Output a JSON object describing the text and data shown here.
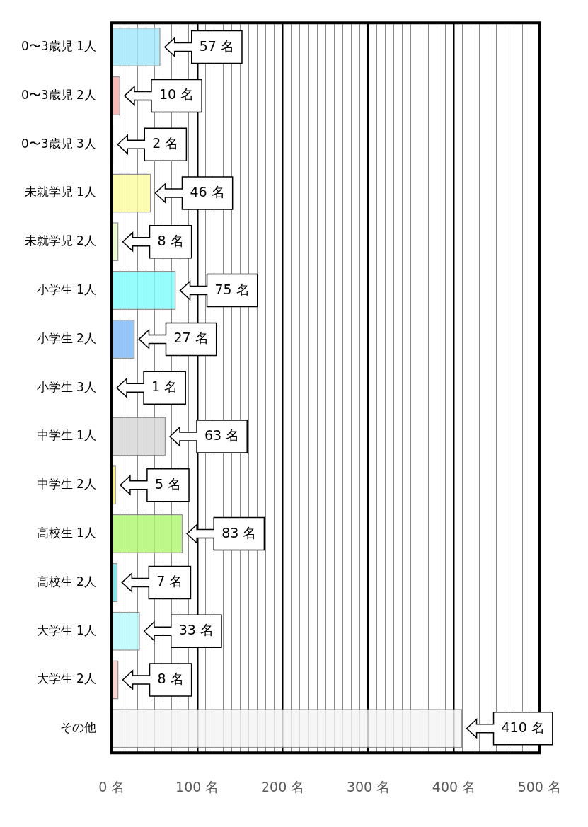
{
  "chart_data": {
    "type": "bar",
    "orientation": "horizontal",
    "categories": [
      "0〜3歳児 1人",
      "0〜3歳児 2人",
      "0〜3歳児 3人",
      "未就学児 1人",
      "未就学児 2人",
      "小学生 1人",
      "小学生 2人",
      "小学生 3人",
      "中学生 1人",
      "中学生 2人",
      "高校生 1人",
      "高校生 2人",
      "大学生 1人",
      "大学生 2人",
      "その他"
    ],
    "values": [
      57,
      10,
      2,
      46,
      8,
      75,
      27,
      1,
      63,
      5,
      83,
      7,
      33,
      8,
      410
    ],
    "colors": [
      "#9ee6fb",
      "#f9a8a8",
      "#c8c8c8",
      "#fdfc9e",
      "#eafbc9",
      "#7dfdfb",
      "#7ab6f7",
      "#d0d0d0",
      "#d5d5d5",
      "#f7f266",
      "#aef56d",
      "#66e0e5",
      "#b8fafd",
      "#fbc8c8",
      "#f4f4f4"
    ],
    "value_labels": [
      "57 名",
      "10 名",
      "2 名",
      "46 名",
      "8 名",
      "75 名",
      "27 名",
      "1 名",
      "63 名",
      "5 名",
      "83 名",
      "7 名",
      "33 名",
      "8 名",
      "410 名"
    ],
    "xlim": [
      0,
      500
    ],
    "xticks": [
      {
        "value": 0,
        "label": "0 名"
      },
      {
        "value": 10,
        "label": null
      },
      {
        "value": 20,
        "label": null
      },
      {
        "value": 30,
        "label": null
      },
      {
        "value": 40,
        "label": null
      },
      {
        "value": 50,
        "label": null
      },
      {
        "value": 60,
        "label": null
      },
      {
        "value": 70,
        "label": null
      },
      {
        "value": 80,
        "label": null
      },
      {
        "value": 90,
        "label": null
      },
      {
        "value": 100,
        "label": "100 名"
      },
      {
        "value": 110,
        "label": null
      },
      {
        "value": 120,
        "label": null
      },
      {
        "value": 130,
        "label": null
      },
      {
        "value": 140,
        "label": null
      },
      {
        "value": 150,
        "label": null
      },
      {
        "value": 160,
        "label": null
      },
      {
        "value": 170,
        "label": null
      },
      {
        "value": 180,
        "label": null
      },
      {
        "value": 190,
        "label": null
      },
      {
        "value": 200,
        "label": "200 名"
      },
      {
        "value": 210,
        "label": null
      },
      {
        "value": 220,
        "label": null
      },
      {
        "value": 230,
        "label": null
      },
      {
        "value": 240,
        "label": null
      },
      {
        "value": 250,
        "label": null
      },
      {
        "value": 260,
        "label": null
      },
      {
        "value": 270,
        "label": null
      },
      {
        "value": 280,
        "label": null
      },
      {
        "value": 290,
        "label": null
      },
      {
        "value": 300,
        "label": "300 名"
      },
      {
        "value": 310,
        "label": null
      },
      {
        "value": 320,
        "label": null
      },
      {
        "value": 330,
        "label": null
      },
      {
        "value": 340,
        "label": null
      },
      {
        "value": 350,
        "label": null
      },
      {
        "value": 360,
        "label": null
      },
      {
        "value": 370,
        "label": null
      },
      {
        "value": 380,
        "label": null
      },
      {
        "value": 390,
        "label": null
      },
      {
        "value": 400,
        "label": "400 名"
      },
      {
        "value": 410,
        "label": null
      },
      {
        "value": 420,
        "label": null
      },
      {
        "value": 430,
        "label": null
      },
      {
        "value": 440,
        "label": null
      },
      {
        "value": 450,
        "label": null
      },
      {
        "value": 460,
        "label": null
      },
      {
        "value": 470,
        "label": null
      },
      {
        "value": 480,
        "label": null
      },
      {
        "value": 490,
        "label": null
      },
      {
        "value": 500,
        "label": "500 名"
      }
    ],
    "grid": "x",
    "legend": false
  }
}
